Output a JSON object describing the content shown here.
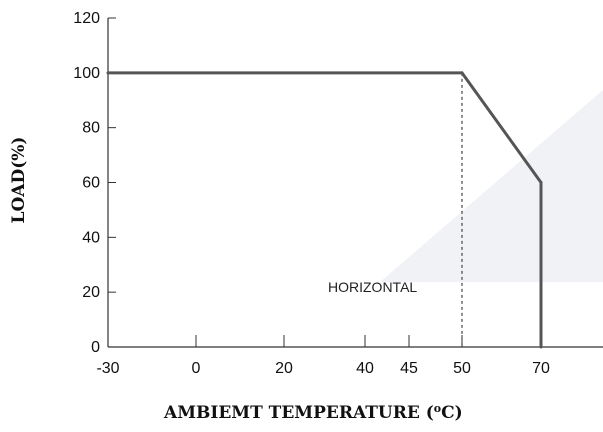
{
  "chart_data": {
    "type": "line",
    "xlabel": "AMBIEMT TEMPERATURE (",
    "xlabel_unit_sup": "o",
    "xlabel_unit": "C)",
    "ylabel": "LOAD(%)",
    "x_ticks": [
      "-30",
      "0",
      "20",
      "40",
      "45",
      "50",
      "70"
    ],
    "x_tick_values": [
      -30,
      0,
      20,
      40,
      45,
      50,
      70
    ],
    "y_ticks": [
      "0",
      "20",
      "40",
      "60",
      "80",
      "100",
      "120"
    ],
    "y_tick_values": [
      0,
      20,
      40,
      60,
      80,
      100,
      120
    ],
    "ylim": [
      0,
      120
    ],
    "grid": false,
    "series": [
      {
        "points": [
          [
            -30,
            100
          ],
          [
            50,
            100
          ],
          [
            70,
            60
          ],
          [
            70,
            0
          ]
        ],
        "color": "#555555"
      }
    ],
    "reference_line": {
      "x": 50,
      "y_from": 0,
      "y_to": 100,
      "style": "dashed"
    },
    "annotations": [
      {
        "text": "HORIZONTAL",
        "x": 45,
        "y": 20
      }
    ],
    "watermark_color": "#dfe3ea"
  }
}
